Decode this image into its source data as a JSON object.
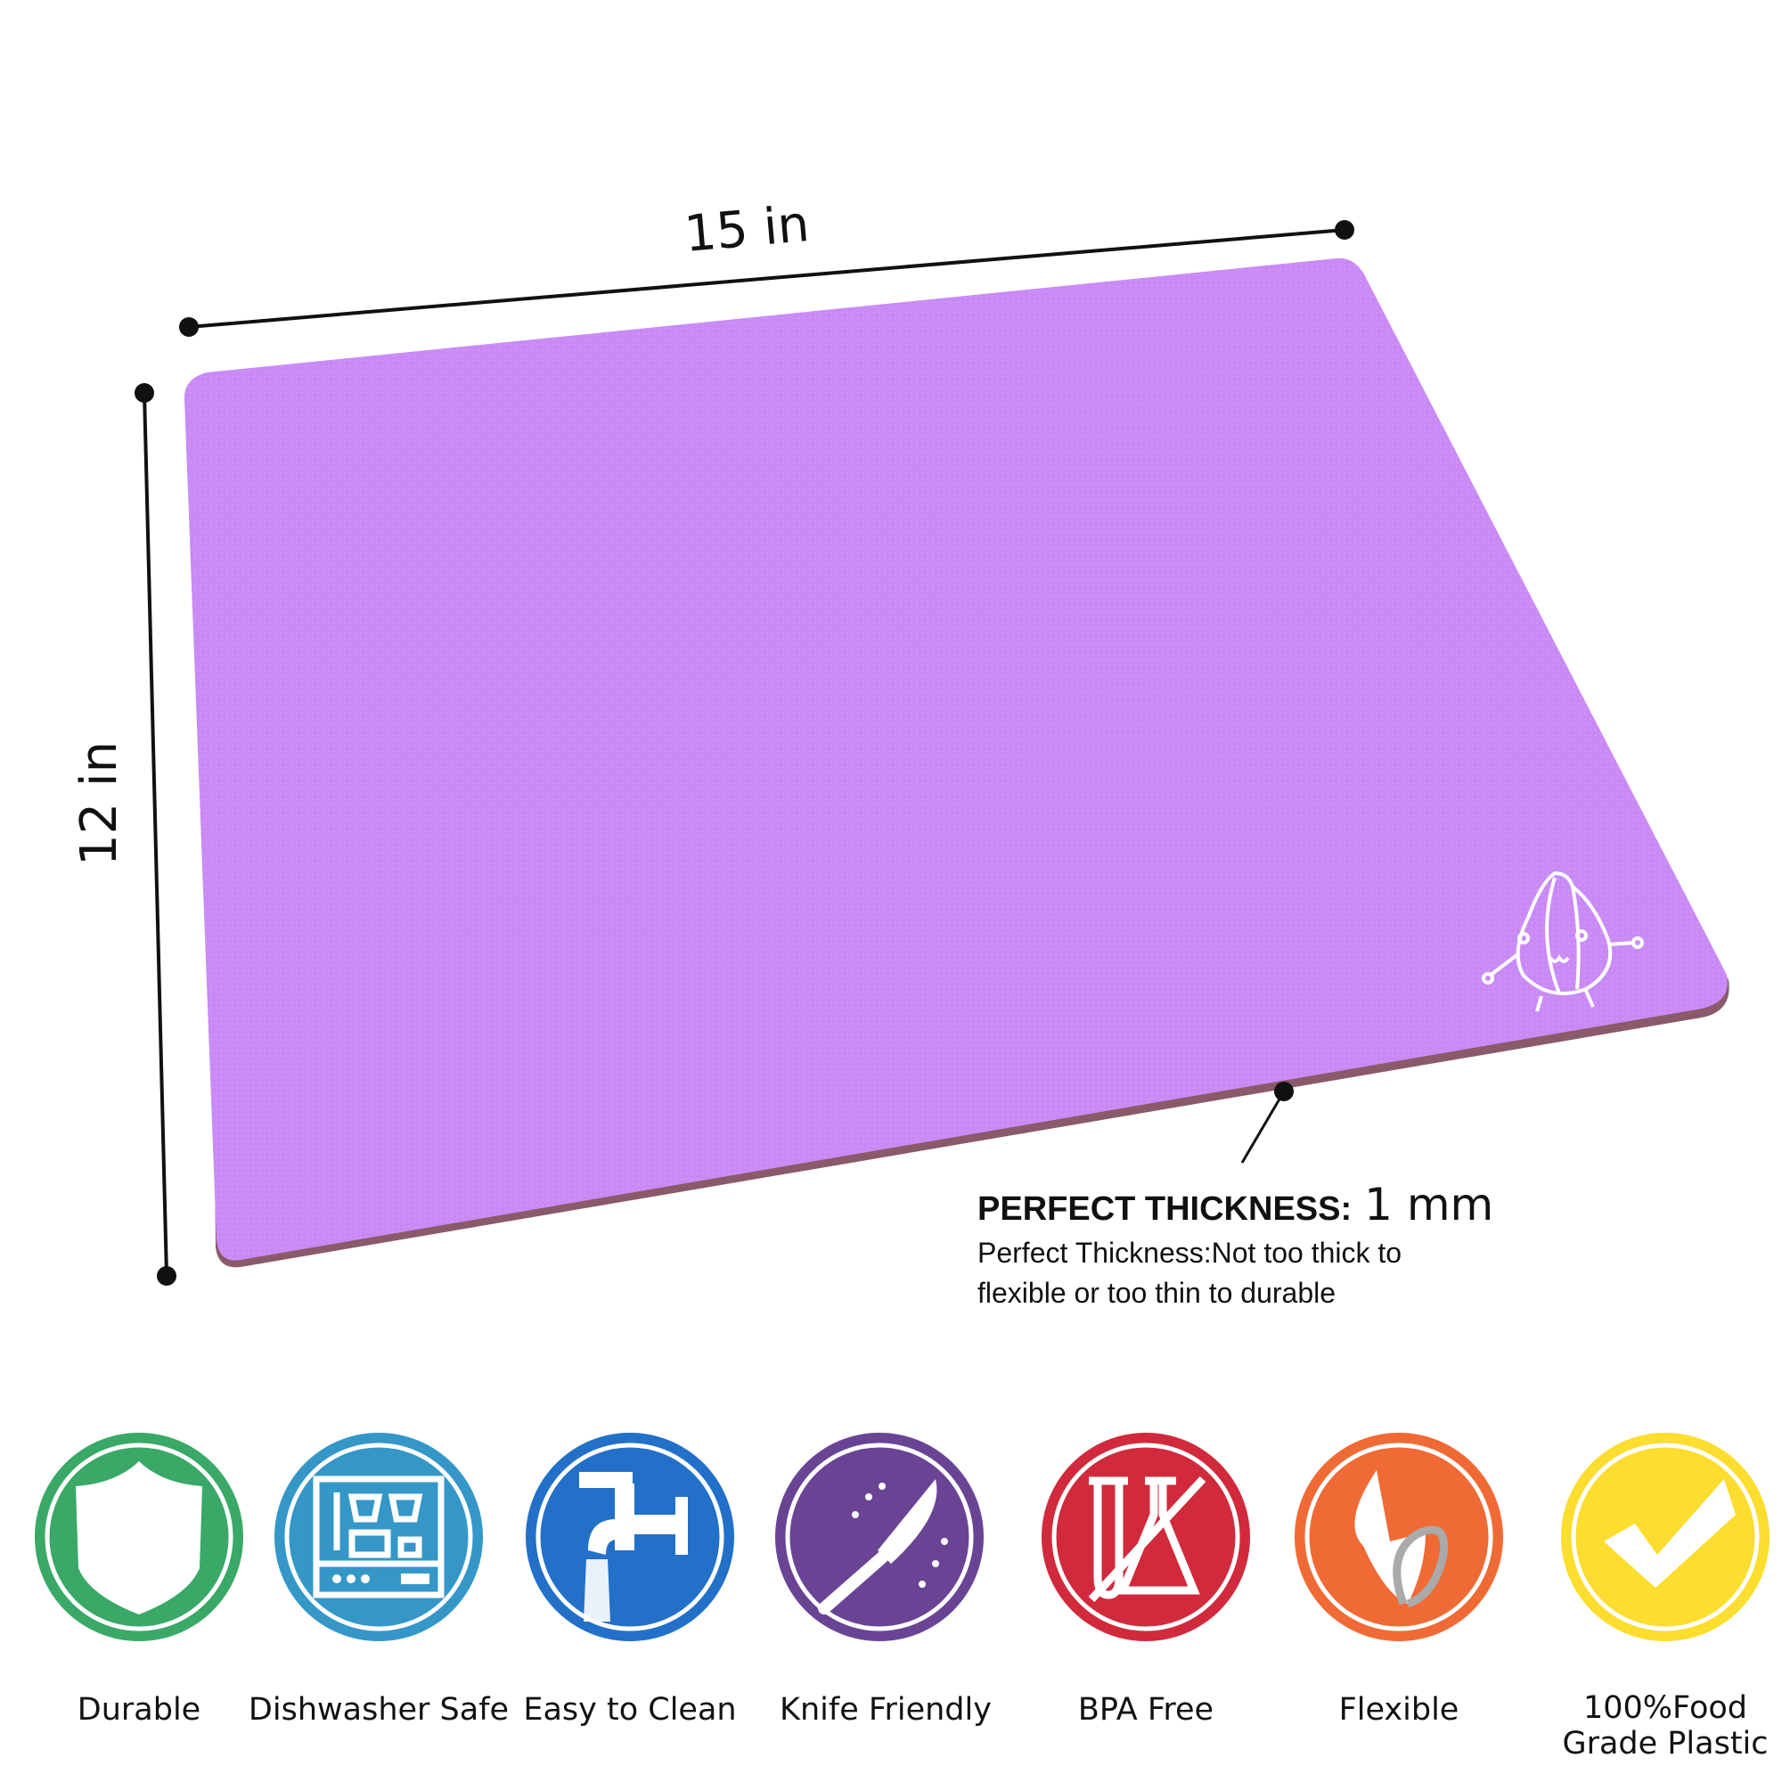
{
  "dimensions": {
    "width_label": "15 in",
    "height_label": "12 in"
  },
  "board": {
    "color": "#c98af5",
    "edge_color": "#8a5a6a",
    "logo": "garlic-mascot"
  },
  "thickness": {
    "heading": "PERFECT THICKNESS:",
    "value": "1 mm",
    "description_line1": "Perfect Thickness:Not too thick to",
    "description_line2": "flexible or too thin to durable"
  },
  "features": [
    {
      "label": "Durable",
      "icon": "shield-icon",
      "color": "#3aa867"
    },
    {
      "label": "Dishwasher Safe",
      "icon": "dishwasher-icon",
      "color": "#3497c8"
    },
    {
      "label": "Easy to Clean",
      "icon": "faucet-icon",
      "color": "#2370c8"
    },
    {
      "label": "Knife Friendly",
      "icon": "knife-icon",
      "color": "#6a4494"
    },
    {
      "label": "BPA Free",
      "icon": "no-chemical-icon",
      "color": "#d12a3c"
    },
    {
      "label": "Flexible",
      "icon": "flexible-sheet-icon",
      "color": "#f06a35"
    },
    {
      "label_line1": "100%Food",
      "label_line2": "Grade Plastic",
      "icon": "checkmark-icon",
      "color": "#fddd2e"
    }
  ]
}
